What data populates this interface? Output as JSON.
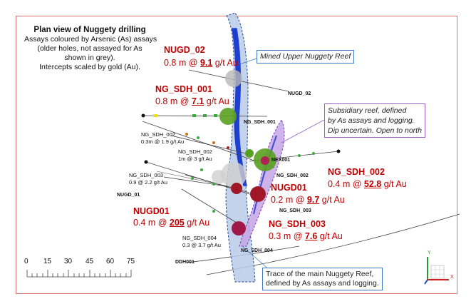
{
  "legend": {
    "title": "Plan view of Nuggety drilling",
    "lines": [
      "Assays coloured by Arsenic (As) assays",
      "(older holes, not assayed for As",
      "shown in grey).",
      "Intercepts scaled by gold (Au)."
    ]
  },
  "callouts": {
    "mined_reef": "Mined Upper Nuggety Reef",
    "subsidiary": [
      "Subsidiary reef, defined",
      "by As assays and logging.",
      "Dip uncertain. Open to north"
    ],
    "main_reef": [
      "Trace of the main Nuggety Reef,",
      "defined by As assays and logging."
    ]
  },
  "intercepts": {
    "nugd02": {
      "hole": "NUGD_02",
      "pre": "0.8 m @ ",
      "val": "9.1",
      "post": " g/t Au"
    },
    "sdh001": {
      "hole": "NG_SDH_001",
      "pre": "0.8 m @ ",
      "val": "7.1",
      "post": " g/t Au"
    },
    "sdh002": {
      "hole": "NG_SDH_002",
      "pre": "0.4 m @ ",
      "val": "52.8",
      "post": " g/t Au"
    },
    "nugd01r": {
      "hole": "NUGD01",
      "pre": "0.2 m @ ",
      "val": "9.7",
      "post": " g/t Au"
    },
    "nugd01l": {
      "hole": "NUGD01",
      "pre": "0.4 m @ ",
      "val": "205",
      "post": " g/t Au"
    },
    "sdh003": {
      "hole": "NG_SDH_003",
      "pre": "0.3 m @ ",
      "val": "7.6",
      "post": " g/t Au"
    }
  },
  "small_intercepts": {
    "a": {
      "hole": "NG_SDH_002",
      "text": "0.3m @ 1.9 g/t Au"
    },
    "b": {
      "hole": "NG_SDH_002",
      "text": "1m @ 3 g/t Au"
    },
    "c": {
      "hole": "NG_SDH_003",
      "text": "0.9 @ 2.2 g/t Au"
    },
    "d": {
      "hole": "NG_SDH_004",
      "text": "0.3 @ 3.7 g/t Au"
    }
  },
  "trace_labels": {
    "nugd_02": "NUGD_02",
    "ng_sdh_001": "NG_SDH_001",
    "nex001": "NEX001",
    "ng_sdh_002": "NG_SDH_002",
    "nugd_01": "NUGD_01",
    "ng_sdh_003": "NG_SDH_003",
    "ng_sdh_004": "NG_SDH_004",
    "ddh001": "DDH001"
  },
  "scale_bar": {
    "ticks": [
      "0",
      "15",
      "30",
      "45",
      "60",
      "75"
    ]
  },
  "axes": {
    "y": "Y",
    "x": "X"
  },
  "colors": {
    "frame": "#e07070",
    "intercept_text": "#c00000",
    "main_reef": "#b8cbe8",
    "mined_reef": "#1f3fd0",
    "subsidiary": "#9a5cc8"
  }
}
